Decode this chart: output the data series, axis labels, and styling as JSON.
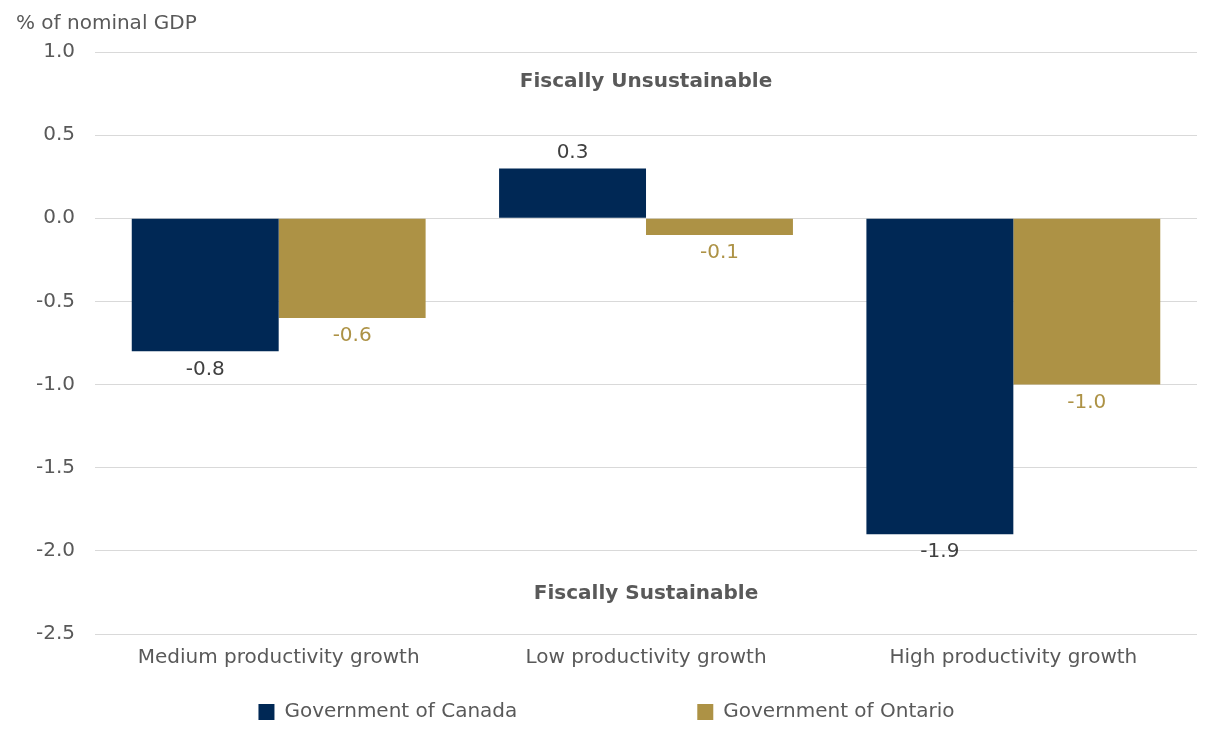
{
  "chart_data": {
    "type": "bar",
    "ylabel": "% of nominal GDP",
    "categories": [
      "Medium productivity growth",
      "Low productivity growth",
      "High productivity growth"
    ],
    "series": [
      {
        "name": "Government of Canada",
        "color": "#002855",
        "values": [
          -0.8,
          0.3,
          -1.9
        ],
        "value_labels": [
          "-0.8",
          "0.3",
          "-1.9"
        ]
      },
      {
        "name": "Government of Ontario",
        "color": "#ad9245",
        "values": [
          -0.6,
          -0.1,
          -1.0
        ],
        "value_labels": [
          "-0.6",
          "-0.1",
          "-1.0"
        ]
      }
    ],
    "ylim": [
      -2.5,
      1.0
    ],
    "yticks": [
      -2.5,
      {
        "value": -2,
        "label": "-2.0"
      },
      -1.5,
      {
        "value": -1,
        "label": "-1.0"
      },
      -0.5,
      {
        "value": 0,
        "label": "0.0"
      },
      0.5,
      {
        "value": 1,
        "label": "1.0"
      }
    ],
    "grid": "y",
    "legend": "bottom",
    "annotations": [
      "Fiscally Unsustainable",
      "Fiscally Sustainable"
    ]
  }
}
